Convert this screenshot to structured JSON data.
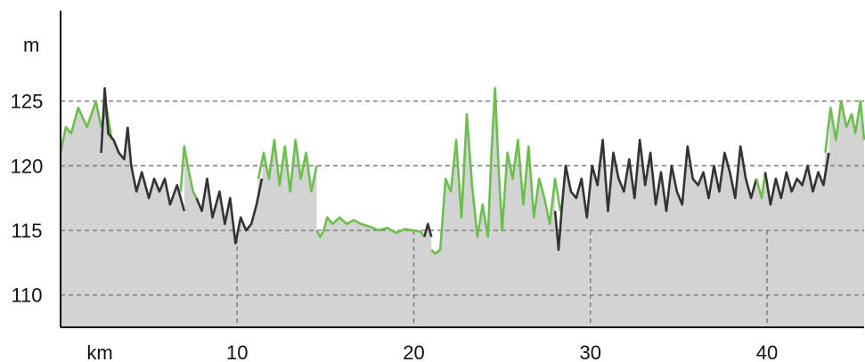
{
  "colors": {
    "area_fill": "#d3d3d3",
    "line_dark": "#333333",
    "line_green": "#6cbf4f",
    "grid": "#777777",
    "axis": "#000000"
  },
  "chart_data": {
    "type": "area",
    "xlabel": "km",
    "ylabel": "m",
    "xlim": [
      0,
      45.5
    ],
    "ylim": [
      107.5,
      132
    ],
    "x_ticks": [
      10,
      20,
      30,
      40
    ],
    "y_ticks": [
      110,
      115,
      120,
      125
    ],
    "grid": true,
    "series": [
      {
        "color": "green",
        "x": [
          0,
          0.3,
          0.6,
          1.0,
          1.5,
          2.0,
          2.3,
          2.6,
          2.9
        ],
        "y": [
          121,
          123,
          122.5,
          124.5,
          123,
          125,
          123,
          124.5,
          122
        ]
      },
      {
        "color": "dark",
        "x": [
          2.3,
          2.5,
          2.7,
          3.0,
          3.3,
          3.6,
          3.8
        ],
        "y": [
          121,
          126,
          122.5,
          122,
          121,
          120.5,
          123
        ]
      },
      {
        "color": "dark",
        "x": [
          3.8,
          4.0,
          4.3,
          4.6,
          5.0,
          5.3,
          5.6,
          5.9,
          6.2,
          6.6,
          7.0
        ],
        "y": [
          123,
          120,
          118,
          119.5,
          117.5,
          119,
          118,
          119,
          117,
          118.5,
          116.5
        ]
      },
      {
        "color": "green",
        "x": [
          6.8,
          7.0,
          7.2,
          7.5,
          7.7
        ],
        "y": [
          118,
          121.5,
          120,
          118,
          117.5
        ]
      },
      {
        "color": "dark",
        "x": [
          7.7,
          8.0,
          8.3,
          8.6,
          9.0,
          9.3,
          9.6,
          9.9,
          10.2,
          10.5,
          10.8,
          11.1,
          11.4
        ],
        "y": [
          117.5,
          116.5,
          119,
          116,
          118,
          115.5,
          117.5,
          114,
          116,
          115,
          115.5,
          117,
          119
        ]
      },
      {
        "color": "green",
        "x": [
          11.2,
          11.5,
          11.8,
          12.1,
          12.4,
          12.7,
          13.0,
          13.3,
          13.6,
          13.9,
          14.2,
          14.5
        ],
        "y": [
          119,
          121,
          119,
          122,
          118.5,
          121.5,
          118,
          122,
          119,
          121,
          118,
          120
        ]
      },
      {
        "color": "green",
        "x": [
          14.5,
          14.7,
          14.9,
          15.1,
          15.4,
          15.8,
          16.2,
          16.6,
          17.0,
          17.5,
          18.0,
          18.5,
          19.0,
          19.5,
          20.0,
          20.4,
          20.6
        ],
        "y": [
          115,
          114.5,
          115,
          116,
          115.5,
          116,
          115.5,
          115.8,
          115.5,
          115.3,
          115.0,
          115.2,
          114.8,
          115.1,
          115.0,
          114.9,
          114.5
        ]
      },
      {
        "color": "dark",
        "x": [
          20.6,
          20.8,
          21.0
        ],
        "y": [
          114.5,
          115.5,
          114.5
        ]
      },
      {
        "color": "green",
        "x": [
          21.0,
          21.2,
          21.5,
          21.8,
          22.1,
          22.4,
          22.7,
          23.0,
          23.3,
          23.6,
          23.9,
          24.2,
          24.4,
          24.6,
          24.8,
          25.0,
          25.3,
          25.6,
          25.9,
          26.2,
          26.5,
          26.8,
          27.1,
          27.4,
          27.7,
          28.0,
          28.3
        ],
        "y": [
          113.5,
          113.2,
          113.5,
          119,
          118,
          122,
          116,
          124,
          118.5,
          114.5,
          117,
          114.5,
          121,
          126,
          120,
          115,
          121,
          119,
          122,
          117,
          121.5,
          116,
          119,
          117.5,
          115.5,
          119,
          116.5
        ]
      },
      {
        "color": "dark",
        "x": [
          28.0,
          28.2,
          28.4,
          28.6,
          28.9,
          29.2,
          29.5,
          29.8,
          30.1,
          30.4,
          30.7,
          31.0,
          31.3,
          31.6,
          31.9,
          32.2,
          32.5,
          32.8,
          33.1,
          33.4,
          33.7,
          34.0,
          34.3,
          34.6,
          34.9,
          35.2,
          35.5,
          35.8,
          36.1,
          36.4,
          36.7,
          37.0,
          37.3,
          37.6,
          37.9,
          38.2,
          38.5,
          38.8,
          39.1,
          39.4
        ],
        "y": [
          116.5,
          113.5,
          117,
          120,
          118,
          117.5,
          119,
          116,
          120,
          118.5,
          122,
          116.5,
          121,
          119,
          118,
          120.5,
          117.5,
          122,
          118.5,
          121,
          117,
          119.5,
          116.5,
          120,
          118,
          117,
          121.5,
          119,
          118.5,
          119.5,
          117.5,
          120,
          118,
          121,
          119.5,
          117.5,
          121.5,
          119,
          117.5,
          119
        ]
      },
      {
        "color": "green",
        "x": [
          39.4,
          39.7,
          39.9
        ],
        "y": [
          119,
          117.5,
          119.5
        ]
      },
      {
        "color": "dark",
        "x": [
          39.9,
          40.2,
          40.5,
          40.8,
          41.1,
          41.4,
          41.7,
          42.0,
          42.3,
          42.6,
          42.9,
          43.2,
          43.5
        ],
        "y": [
          119.5,
          117,
          119,
          117.5,
          119.5,
          118,
          119,
          118.5,
          120,
          118,
          119.5,
          118.5,
          121
        ]
      },
      {
        "color": "green",
        "x": [
          43.3,
          43.6,
          43.9,
          44.2,
          44.5,
          44.8,
          45.0,
          45.3,
          45.5
        ],
        "y": [
          121,
          124.5,
          122,
          125,
          123,
          124,
          122.5,
          125,
          122
        ]
      }
    ]
  }
}
